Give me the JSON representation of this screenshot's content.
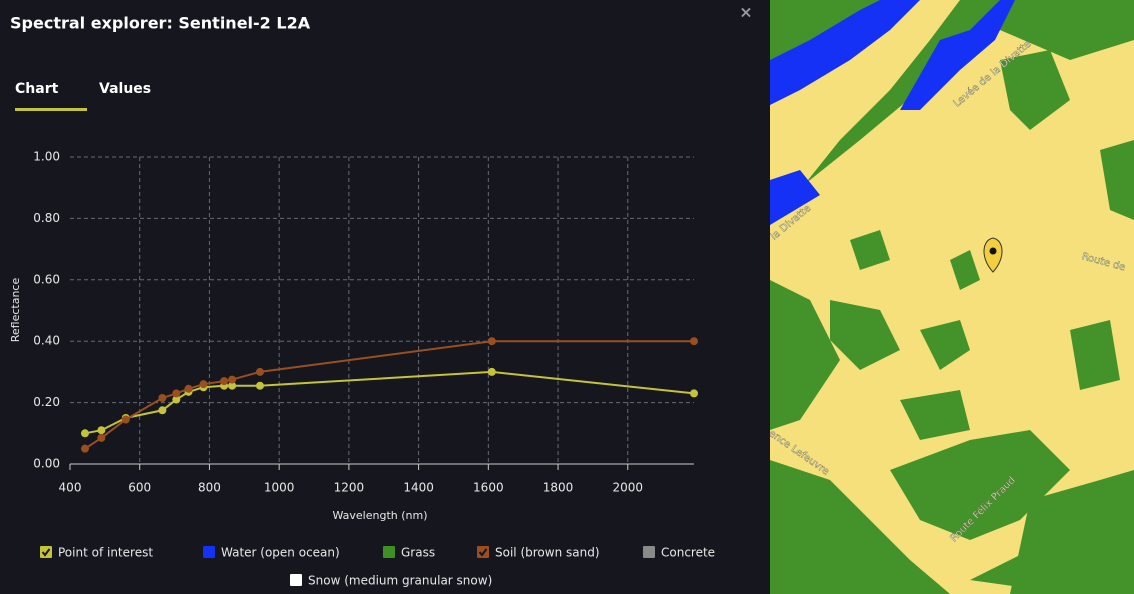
{
  "header": {
    "title": "Spectral explorer: Sentinel-2 L2A",
    "close": "×"
  },
  "tabs": [
    "Chart",
    "Values"
  ],
  "chart_data": {
    "type": "line",
    "x_label": "Wavelength (nm)",
    "y_label": "Reflectance",
    "x": [
      443,
      490,
      560,
      665,
      705,
      740,
      783,
      842,
      865,
      945,
      1610,
      2190
    ],
    "series": [
      {
        "name": "Point of interest",
        "color": "#c3c43a",
        "checked": true,
        "values": [
          0.1,
          0.11,
          0.15,
          0.175,
          0.21,
          0.235,
          0.25,
          0.255,
          0.255,
          0.255,
          0.3,
          0.23
        ]
      },
      {
        "name": "Water (open ocean)",
        "color": "#1431f5",
        "checked": false,
        "values": [
          null,
          null,
          null,
          null,
          null,
          null,
          null,
          null,
          null,
          null,
          null,
          null
        ]
      },
      {
        "name": "Grass",
        "color": "#3f8f25",
        "checked": false,
        "values": [
          null,
          null,
          null,
          null,
          null,
          null,
          null,
          null,
          null,
          null,
          null,
          null
        ]
      },
      {
        "name": "Soil (brown sand)",
        "color": "#9a4f1f",
        "checked": true,
        "values": [
          0.05,
          0.085,
          0.145,
          0.215,
          0.23,
          0.245,
          0.26,
          0.27,
          0.275,
          0.3,
          0.4,
          0.4
        ]
      },
      {
        "name": "Concrete",
        "color": "#8a8a8a",
        "checked": false,
        "values": [
          null,
          null,
          null,
          null,
          null,
          null,
          null,
          null,
          null,
          null,
          null,
          null
        ]
      },
      {
        "name": "Snow (medium granular snow)",
        "color": "#ffffff",
        "checked": false,
        "values": [
          null,
          null,
          null,
          null,
          null,
          null,
          null,
          null,
          null,
          null,
          null,
          null
        ]
      }
    ],
    "xlim": [
      400,
      2190
    ],
    "xticks": [
      400,
      600,
      800,
      1000,
      1200,
      1400,
      1600,
      1800,
      2000
    ],
    "ylim": [
      0,
      1
    ],
    "yticks": [
      {
        "value": 0,
        "label": "0.00"
      },
      {
        "value": 0.2,
        "label": "0.20"
      },
      {
        "value": 0.4,
        "label": "0.40"
      },
      {
        "value": 0.6,
        "label": "0.60"
      },
      {
        "value": 0.8,
        "label": "0.80"
      },
      {
        "value": 1,
        "label": "1.00"
      }
    ],
    "grid": true
  },
  "map": {
    "labels": [
      "Levée de la Divatte",
      "la Divatte",
      "Route de",
      "ence Lefeuvre",
      "Route Félix Praud"
    ]
  }
}
